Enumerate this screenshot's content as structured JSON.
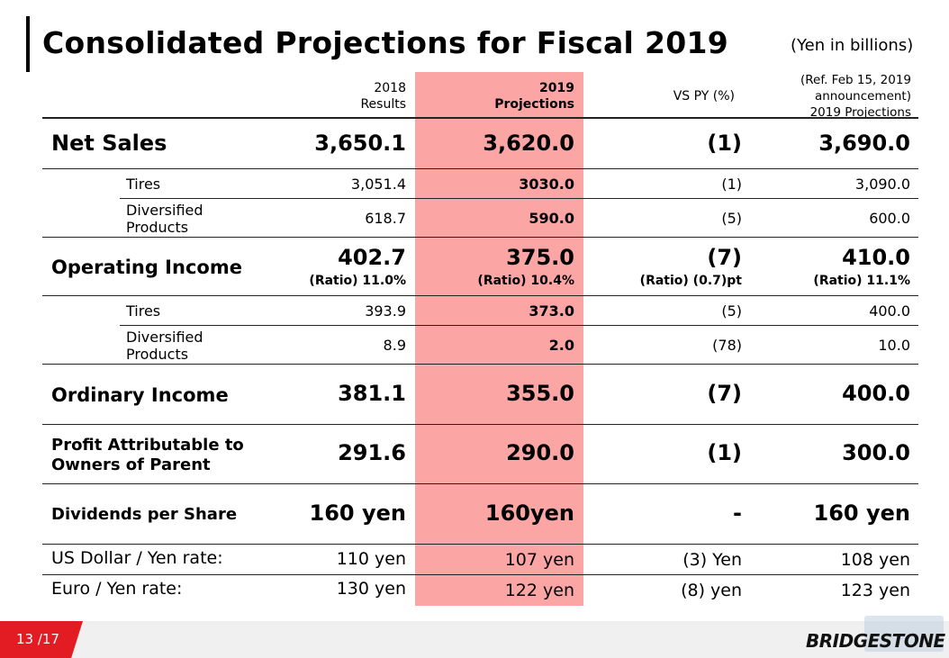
{
  "title": "Consolidated Projections for Fiscal 2019",
  "unit": "(Yen in billions)",
  "headers": {
    "results_2018_line1": "2018",
    "results_2018_line2": "Results",
    "proj_2019_line1": "2019",
    "proj_2019_line2": "Projections",
    "vs_py": "VS PY (%)",
    "ref_line1": "(Ref.  Feb 15, 2019",
    "ref_line2": "announcement)",
    "ref_line3": "2019 Projections"
  },
  "rows": {
    "net_sales": {
      "label": "Net Sales",
      "r2018": "3,650.1",
      "p2019": "3,620.0",
      "vspy": "(1)",
      "ref": "3,690.0"
    },
    "ns_tires": {
      "label": "Tires",
      "r2018": "3,051.4",
      "p2019": "3030.0",
      "vspy": "(1)",
      "ref": "3,090.0"
    },
    "ns_div": {
      "label1": "Diversified",
      "label2": "Products",
      "r2018": "618.7",
      "p2019": "590.0",
      "vspy": "(5)",
      "ref": "600.0"
    },
    "op_income": {
      "label": "Operating Income",
      "r2018": "402.7",
      "p2019": "375.0",
      "vspy": "(7)",
      "ref": "410.0",
      "r2018_ratio": "(Ratio) 11.0%",
      "p2019_ratio": "(Ratio) 10.4%",
      "vspy_ratio": "(Ratio) (0.7)pt",
      "ref_ratio": "(Ratio) 11.1%"
    },
    "oi_tires": {
      "label": "Tires",
      "r2018": "393.9",
      "p2019": "373.0",
      "vspy": "(5)",
      "ref": "400.0"
    },
    "oi_div": {
      "label1": "Diversified",
      "label2": "Products",
      "r2018": "8.9",
      "p2019": "2.0",
      "vspy": "(78)",
      "ref": "10.0"
    },
    "ord_income": {
      "label": "Ordinary Income",
      "r2018": "381.1",
      "p2019": "355.0",
      "vspy": "(7)",
      "ref": "400.0"
    },
    "profit": {
      "label1": "Profit Attributable to",
      "label2": "Owners of Parent",
      "r2018": "291.6",
      "p2019": "290.0",
      "vspy": "(1)",
      "ref": "300.0"
    },
    "dividends": {
      "label": "Dividends per Share",
      "r2018": "160 yen",
      "p2019": "160yen",
      "vspy": "-",
      "ref": "160 yen"
    },
    "usd": {
      "label": "US Dollar / Yen rate:",
      "r2018": "110 yen",
      "p2019": "107 yen",
      "vspy": "(3) Yen",
      "ref": "108 yen"
    },
    "eur": {
      "label": "Euro / Yen rate:",
      "r2018": "130 yen",
      "p2019": "122 yen",
      "vspy": "(8) yen",
      "ref": "123 yen"
    }
  },
  "footer": {
    "page": "13 /17",
    "brand": "BRIDGESTONE"
  },
  "colors": {
    "highlight": "#fca5a5",
    "page_badge": "#e31b23"
  }
}
